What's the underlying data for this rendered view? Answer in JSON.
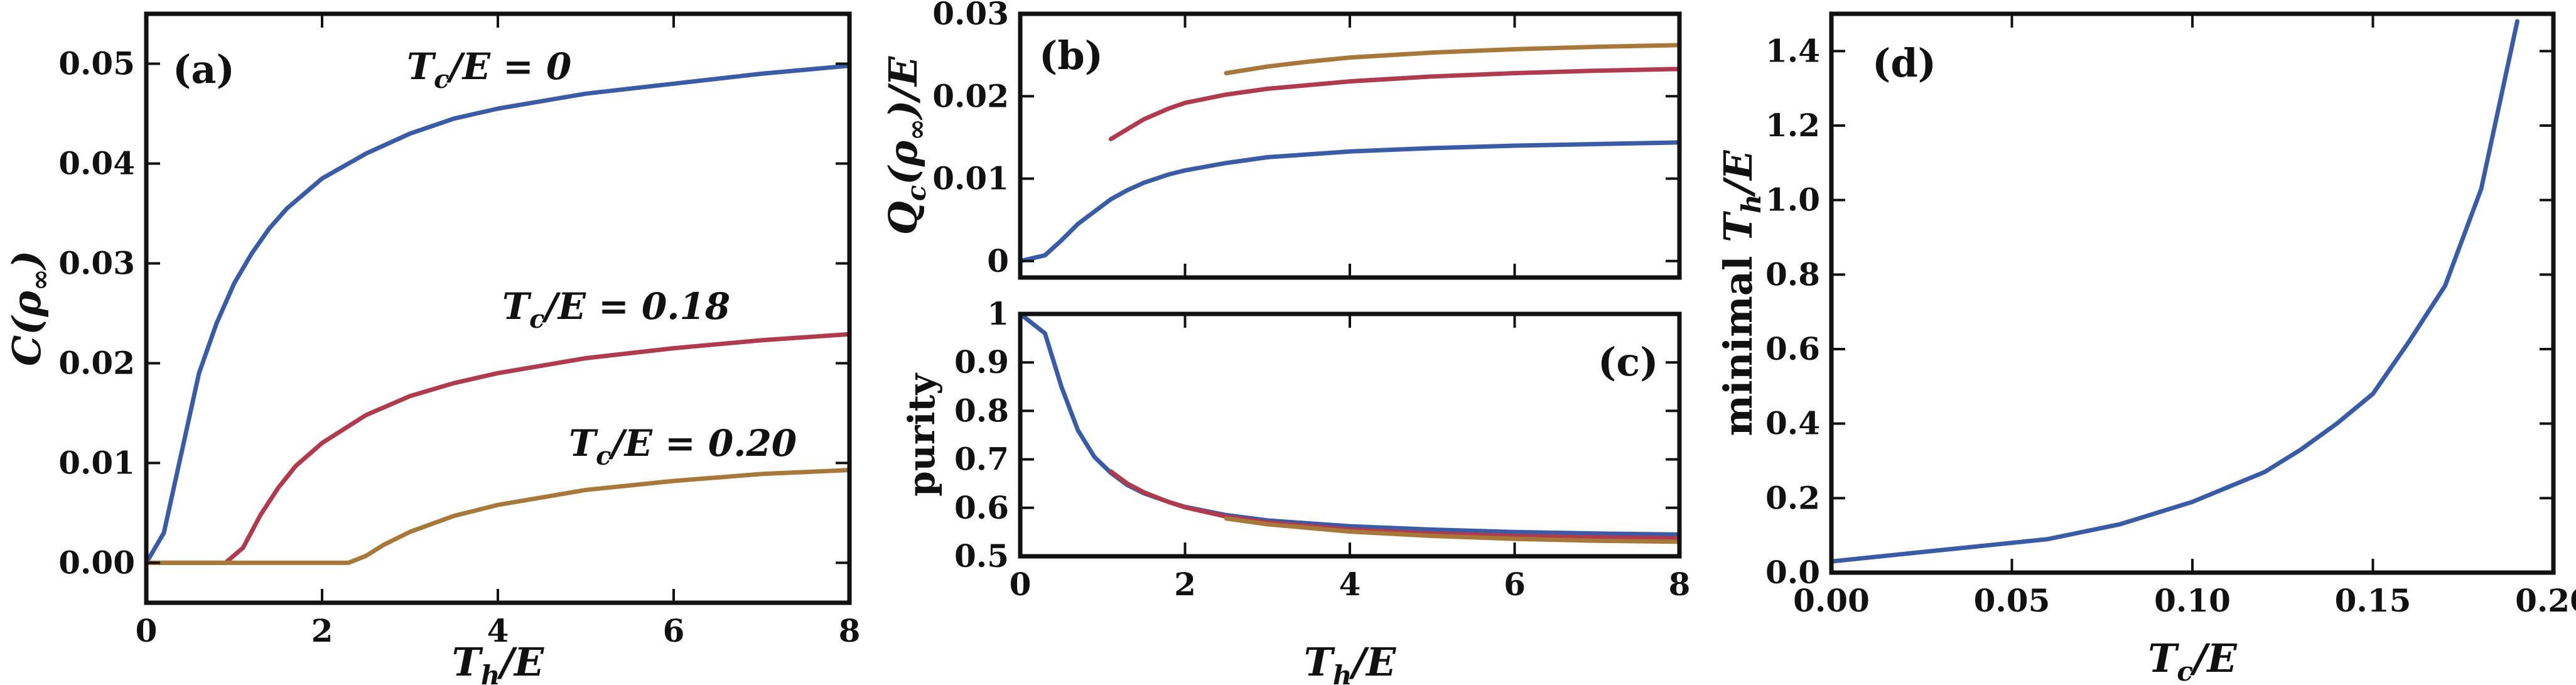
{
  "colors": {
    "blue": "#3a5ba6",
    "red": "#b03a4e",
    "gold": "#a8783a"
  },
  "chart_data": [
    {
      "id": "a",
      "type": "line",
      "panel_label": "(a)",
      "xlabel": "T_h/E",
      "ylabel": "C(ρ∞)",
      "xlim": [
        0,
        8
      ],
      "ylim": [
        -0.004,
        0.055
      ],
      "xticks": [
        0,
        2,
        4,
        6,
        8
      ],
      "xtick_labels": [
        "0",
        "2",
        "4",
        "6",
        "8"
      ],
      "yticks": [
        0,
        0.01,
        0.02,
        0.03,
        0.04,
        0.05
      ],
      "ytick_labels": [
        "0.00",
        "0.01",
        "0.02",
        "0.03",
        "0.04",
        "0.05"
      ],
      "annotations": [
        {
          "text": "Tc/E = 0",
          "color": "blue"
        },
        {
          "text": "Tc/E = 0.18",
          "color": "red"
        },
        {
          "text": "Tc/E = 0.20",
          "color": "gold"
        }
      ],
      "series": [
        {
          "color": "blue",
          "x": [
            0,
            0.2,
            0.4,
            0.6,
            0.8,
            1.0,
            1.2,
            1.4,
            1.6,
            1.8,
            2.0,
            2.5,
            3.0,
            3.5,
            4.0,
            5.0,
            6.0,
            7.0,
            8.0
          ],
          "y": [
            0,
            0.003,
            0.011,
            0.019,
            0.024,
            0.028,
            0.031,
            0.0335,
            0.0355,
            0.037,
            0.0385,
            0.041,
            0.043,
            0.0445,
            0.0455,
            0.047,
            0.048,
            0.049,
            0.0498
          ]
        },
        {
          "color": "red",
          "x": [
            0,
            0.9,
            1.1,
            1.3,
            1.5,
            1.7,
            2.0,
            2.5,
            3.0,
            3.5,
            4.0,
            5.0,
            6.0,
            7.0,
            8.0
          ],
          "y": [
            0,
            0,
            0.0015,
            0.0048,
            0.0075,
            0.0097,
            0.012,
            0.0148,
            0.0167,
            0.018,
            0.019,
            0.0205,
            0.0215,
            0.0223,
            0.0229
          ]
        },
        {
          "color": "gold",
          "x": [
            0,
            2.3,
            2.5,
            2.7,
            3.0,
            3.5,
            4.0,
            5.0,
            6.0,
            7.0,
            8.0
          ],
          "y": [
            0,
            0,
            0.0007,
            0.0018,
            0.0031,
            0.0047,
            0.0058,
            0.0073,
            0.0082,
            0.0089,
            0.0093
          ]
        }
      ]
    },
    {
      "id": "b",
      "type": "line",
      "panel_label": "(b)",
      "xlabel": "",
      "ylabel": "Qc(ρ∞)/E",
      "xlim": [
        0,
        8
      ],
      "ylim": [
        -0.002,
        0.03
      ],
      "xticks": [
        0,
        2,
        4,
        6,
        8
      ],
      "xtick_labels": [
        "",
        "",
        "",
        "",
        ""
      ],
      "yticks": [
        0,
        0.01,
        0.02,
        0.03
      ],
      "ytick_labels": [
        "0",
        "0.01",
        "0.02",
        "0.03"
      ],
      "series": [
        {
          "color": "blue",
          "x": [
            0,
            0.3,
            0.5,
            0.7,
            0.9,
            1.1,
            1.3,
            1.5,
            1.8,
            2.0,
            2.5,
            3.0,
            4.0,
            5.0,
            6.0,
            7.0,
            8.0
          ],
          "y": [
            0,
            0.0007,
            0.0025,
            0.0045,
            0.006,
            0.0075,
            0.0086,
            0.0095,
            0.0105,
            0.011,
            0.0119,
            0.0126,
            0.0133,
            0.0137,
            0.014,
            0.0142,
            0.0144
          ]
        },
        {
          "color": "red",
          "x": [
            1.1,
            1.3,
            1.5,
            1.8,
            2.0,
            2.5,
            3.0,
            4.0,
            5.0,
            6.0,
            7.0,
            8.0
          ],
          "y": [
            0.0148,
            0.016,
            0.0172,
            0.0185,
            0.0192,
            0.0202,
            0.0209,
            0.0218,
            0.0224,
            0.0228,
            0.0231,
            0.0233
          ]
        },
        {
          "color": "gold",
          "x": [
            2.5,
            3.0,
            3.5,
            4.0,
            5.0,
            6.0,
            7.0,
            8.0
          ],
          "y": [
            0.0228,
            0.0236,
            0.0242,
            0.0247,
            0.0253,
            0.0257,
            0.026,
            0.0262
          ]
        }
      ]
    },
    {
      "id": "c",
      "type": "line",
      "panel_label": "(c)",
      "xlabel": "T_h/E",
      "ylabel": "purity",
      "xlim": [
        0,
        8
      ],
      "ylim": [
        0.5,
        1.0
      ],
      "xticks": [
        0,
        2,
        4,
        6,
        8
      ],
      "xtick_labels": [
        "0",
        "2",
        "4",
        "6",
        "8"
      ],
      "yticks": [
        0.5,
        0.6,
        0.7,
        0.8,
        0.9,
        1.0
      ],
      "ytick_labels": [
        "0.5",
        "0.6",
        "0.7",
        "0.8",
        "0.9",
        "1"
      ],
      "series": [
        {
          "color": "blue",
          "x": [
            0,
            0.3,
            0.5,
            0.7,
            0.9,
            1.1,
            1.3,
            1.5,
            1.8,
            2.0,
            2.5,
            3.0,
            4.0,
            5.0,
            6.0,
            7.0,
            8.0
          ],
          "y": [
            1.0,
            0.96,
            0.85,
            0.76,
            0.705,
            0.672,
            0.647,
            0.63,
            0.612,
            0.602,
            0.585,
            0.574,
            0.562,
            0.555,
            0.55,
            0.547,
            0.545
          ]
        },
        {
          "color": "red",
          "x": [
            1.1,
            1.3,
            1.5,
            1.8,
            2.0,
            2.5,
            3.0,
            4.0,
            5.0,
            6.0,
            7.0,
            8.0
          ],
          "y": [
            0.675,
            0.65,
            0.632,
            0.612,
            0.601,
            0.582,
            0.57,
            0.555,
            0.547,
            0.542,
            0.539,
            0.537
          ]
        },
        {
          "color": "gold",
          "x": [
            2.5,
            3.0,
            4.0,
            5.0,
            6.0,
            7.0,
            8.0
          ],
          "y": [
            0.578,
            0.566,
            0.551,
            0.542,
            0.536,
            0.532,
            0.53
          ]
        }
      ]
    },
    {
      "id": "d",
      "type": "line",
      "panel_label": "(d)",
      "xlabel": "Tc/E",
      "ylabel": "minimal Th/E",
      "xlim": [
        0,
        0.2
      ],
      "ylim": [
        0,
        1.5
      ],
      "xticks": [
        0,
        0.05,
        0.1,
        0.15,
        0.2
      ],
      "xtick_labels": [
        "0.00",
        "0.05",
        "0.10",
        "0.15",
        "0.20"
      ],
      "yticks": [
        0,
        0.2,
        0.4,
        0.6,
        0.8,
        1.0,
        1.2,
        1.4
      ],
      "ytick_labels": [
        "0.0",
        "0.2",
        "0.4",
        "0.6",
        "0.8",
        "1.0",
        "1.2",
        "1.4"
      ],
      "series": [
        {
          "color": "blue",
          "x": [
            0,
            0.02,
            0.04,
            0.06,
            0.08,
            0.1,
            0.12,
            0.13,
            0.14,
            0.15,
            0.16,
            0.17,
            0.18,
            0.19
          ],
          "y": [
            0.03,
            0.05,
            0.07,
            0.09,
            0.13,
            0.19,
            0.27,
            0.33,
            0.4,
            0.48,
            0.62,
            0.77,
            1.03,
            1.48
          ]
        }
      ]
    }
  ]
}
